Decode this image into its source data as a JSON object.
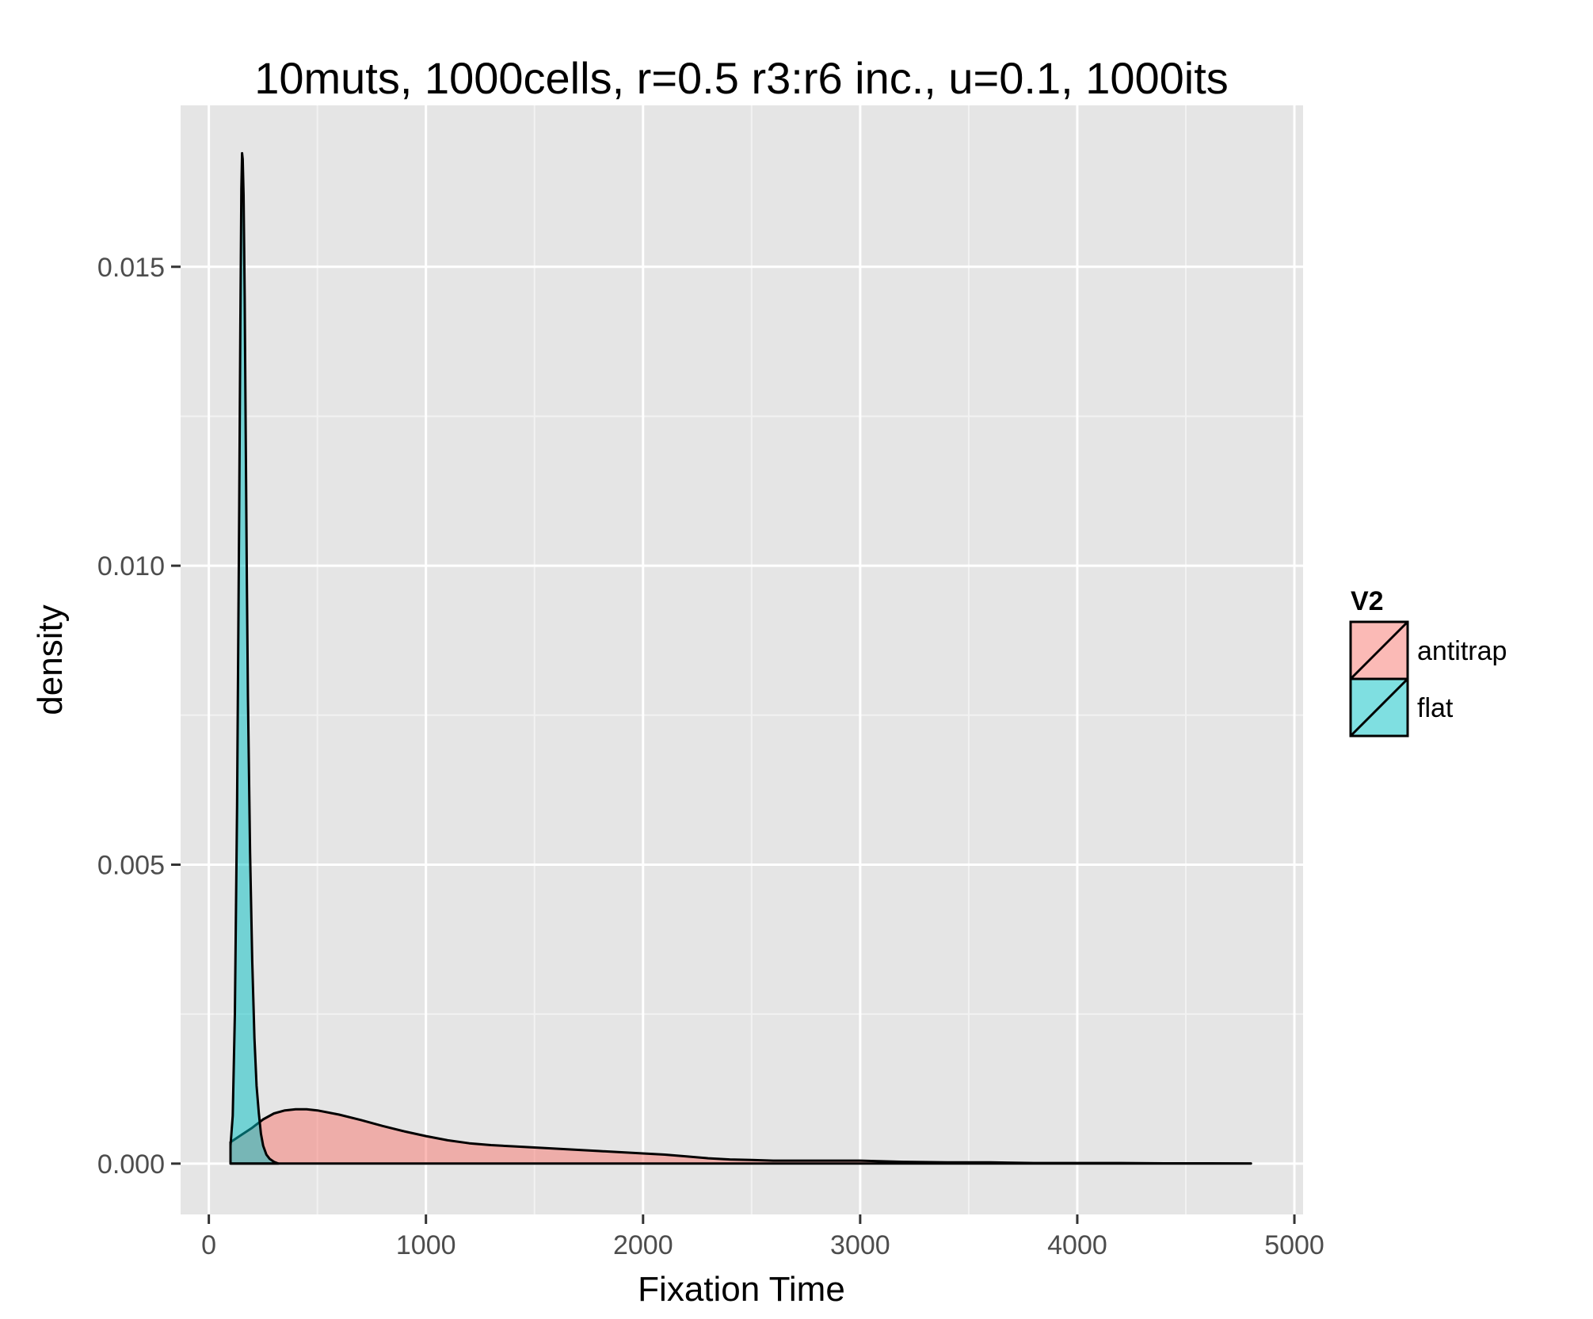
{
  "chart_data": {
    "type": "area",
    "title": "10muts, 1000cells, r=0.5 r3:r6 inc., u=0.1, 1000its",
    "xlabel": "Fixation Time",
    "ylabel": "density",
    "xlim": [
      -130,
      5040
    ],
    "ylim": [
      -0.00085,
      0.0177
    ],
    "x_ticks": [
      0,
      1000,
      2000,
      3000,
      4000,
      5000
    ],
    "x_tick_labels": [
      "0",
      "1000",
      "2000",
      "3000",
      "4000",
      "5000"
    ],
    "y_ticks": [
      0,
      0.005,
      0.01,
      0.015
    ],
    "y_tick_labels": [
      "0.000",
      "0.005",
      "0.010",
      "0.015"
    ],
    "grid": true,
    "legend": {
      "title": "V2",
      "placement": "right"
    },
    "series": [
      {
        "name": "antitrap",
        "color": "#F8766D",
        "x": [
          100,
          100,
          150,
          200,
          250,
          300,
          350,
          400,
          450,
          500,
          600,
          700,
          800,
          900,
          1000,
          1100,
          1200,
          1300,
          1400,
          1500,
          1600,
          1700,
          1800,
          1900,
          2000,
          2100,
          2200,
          2300,
          2400,
          2500,
          2600,
          2700,
          2800,
          2900,
          3000,
          3200,
          3400,
          3600,
          3800,
          4000,
          4200,
          4400,
          4600,
          4800,
          4800
        ],
        "y": [
          0,
          0.00036,
          0.00048,
          0.0006,
          0.00074,
          0.00084,
          0.00089,
          0.00091,
          0.00091,
          0.00089,
          0.00082,
          0.00073,
          0.00063,
          0.00054,
          0.00046,
          0.00039,
          0.00034,
          0.00031,
          0.00029,
          0.00027,
          0.00025,
          0.00023,
          0.00021,
          0.00019,
          0.00017,
          0.00015,
          0.00012,
          9e-05,
          7e-05,
          6e-05,
          5e-05,
          5e-05,
          5e-05,
          5e-05,
          5e-05,
          3e-05,
          2e-05,
          2e-05,
          1e-05,
          1e-05,
          1e-05,
          5e-06,
          5e-06,
          3e-06,
          0
        ]
      },
      {
        "name": "flat",
        "color": "#00BFC4",
        "x": [
          100,
          100,
          110,
          120,
          130,
          140,
          145,
          150,
          153,
          156,
          160,
          165,
          170,
          175,
          180,
          190,
          200,
          210,
          220,
          230,
          240,
          250,
          265,
          280,
          300,
          320
        ],
        "y": [
          0,
          0.0003,
          0.0008,
          0.0025,
          0.006,
          0.011,
          0.014,
          0.0163,
          0.0169,
          0.0168,
          0.0162,
          0.0145,
          0.0122,
          0.0098,
          0.0078,
          0.0052,
          0.0034,
          0.0021,
          0.0013,
          0.00085,
          0.0005,
          0.0003,
          0.00015,
          8e-05,
          3e-05,
          0
        ]
      }
    ]
  }
}
